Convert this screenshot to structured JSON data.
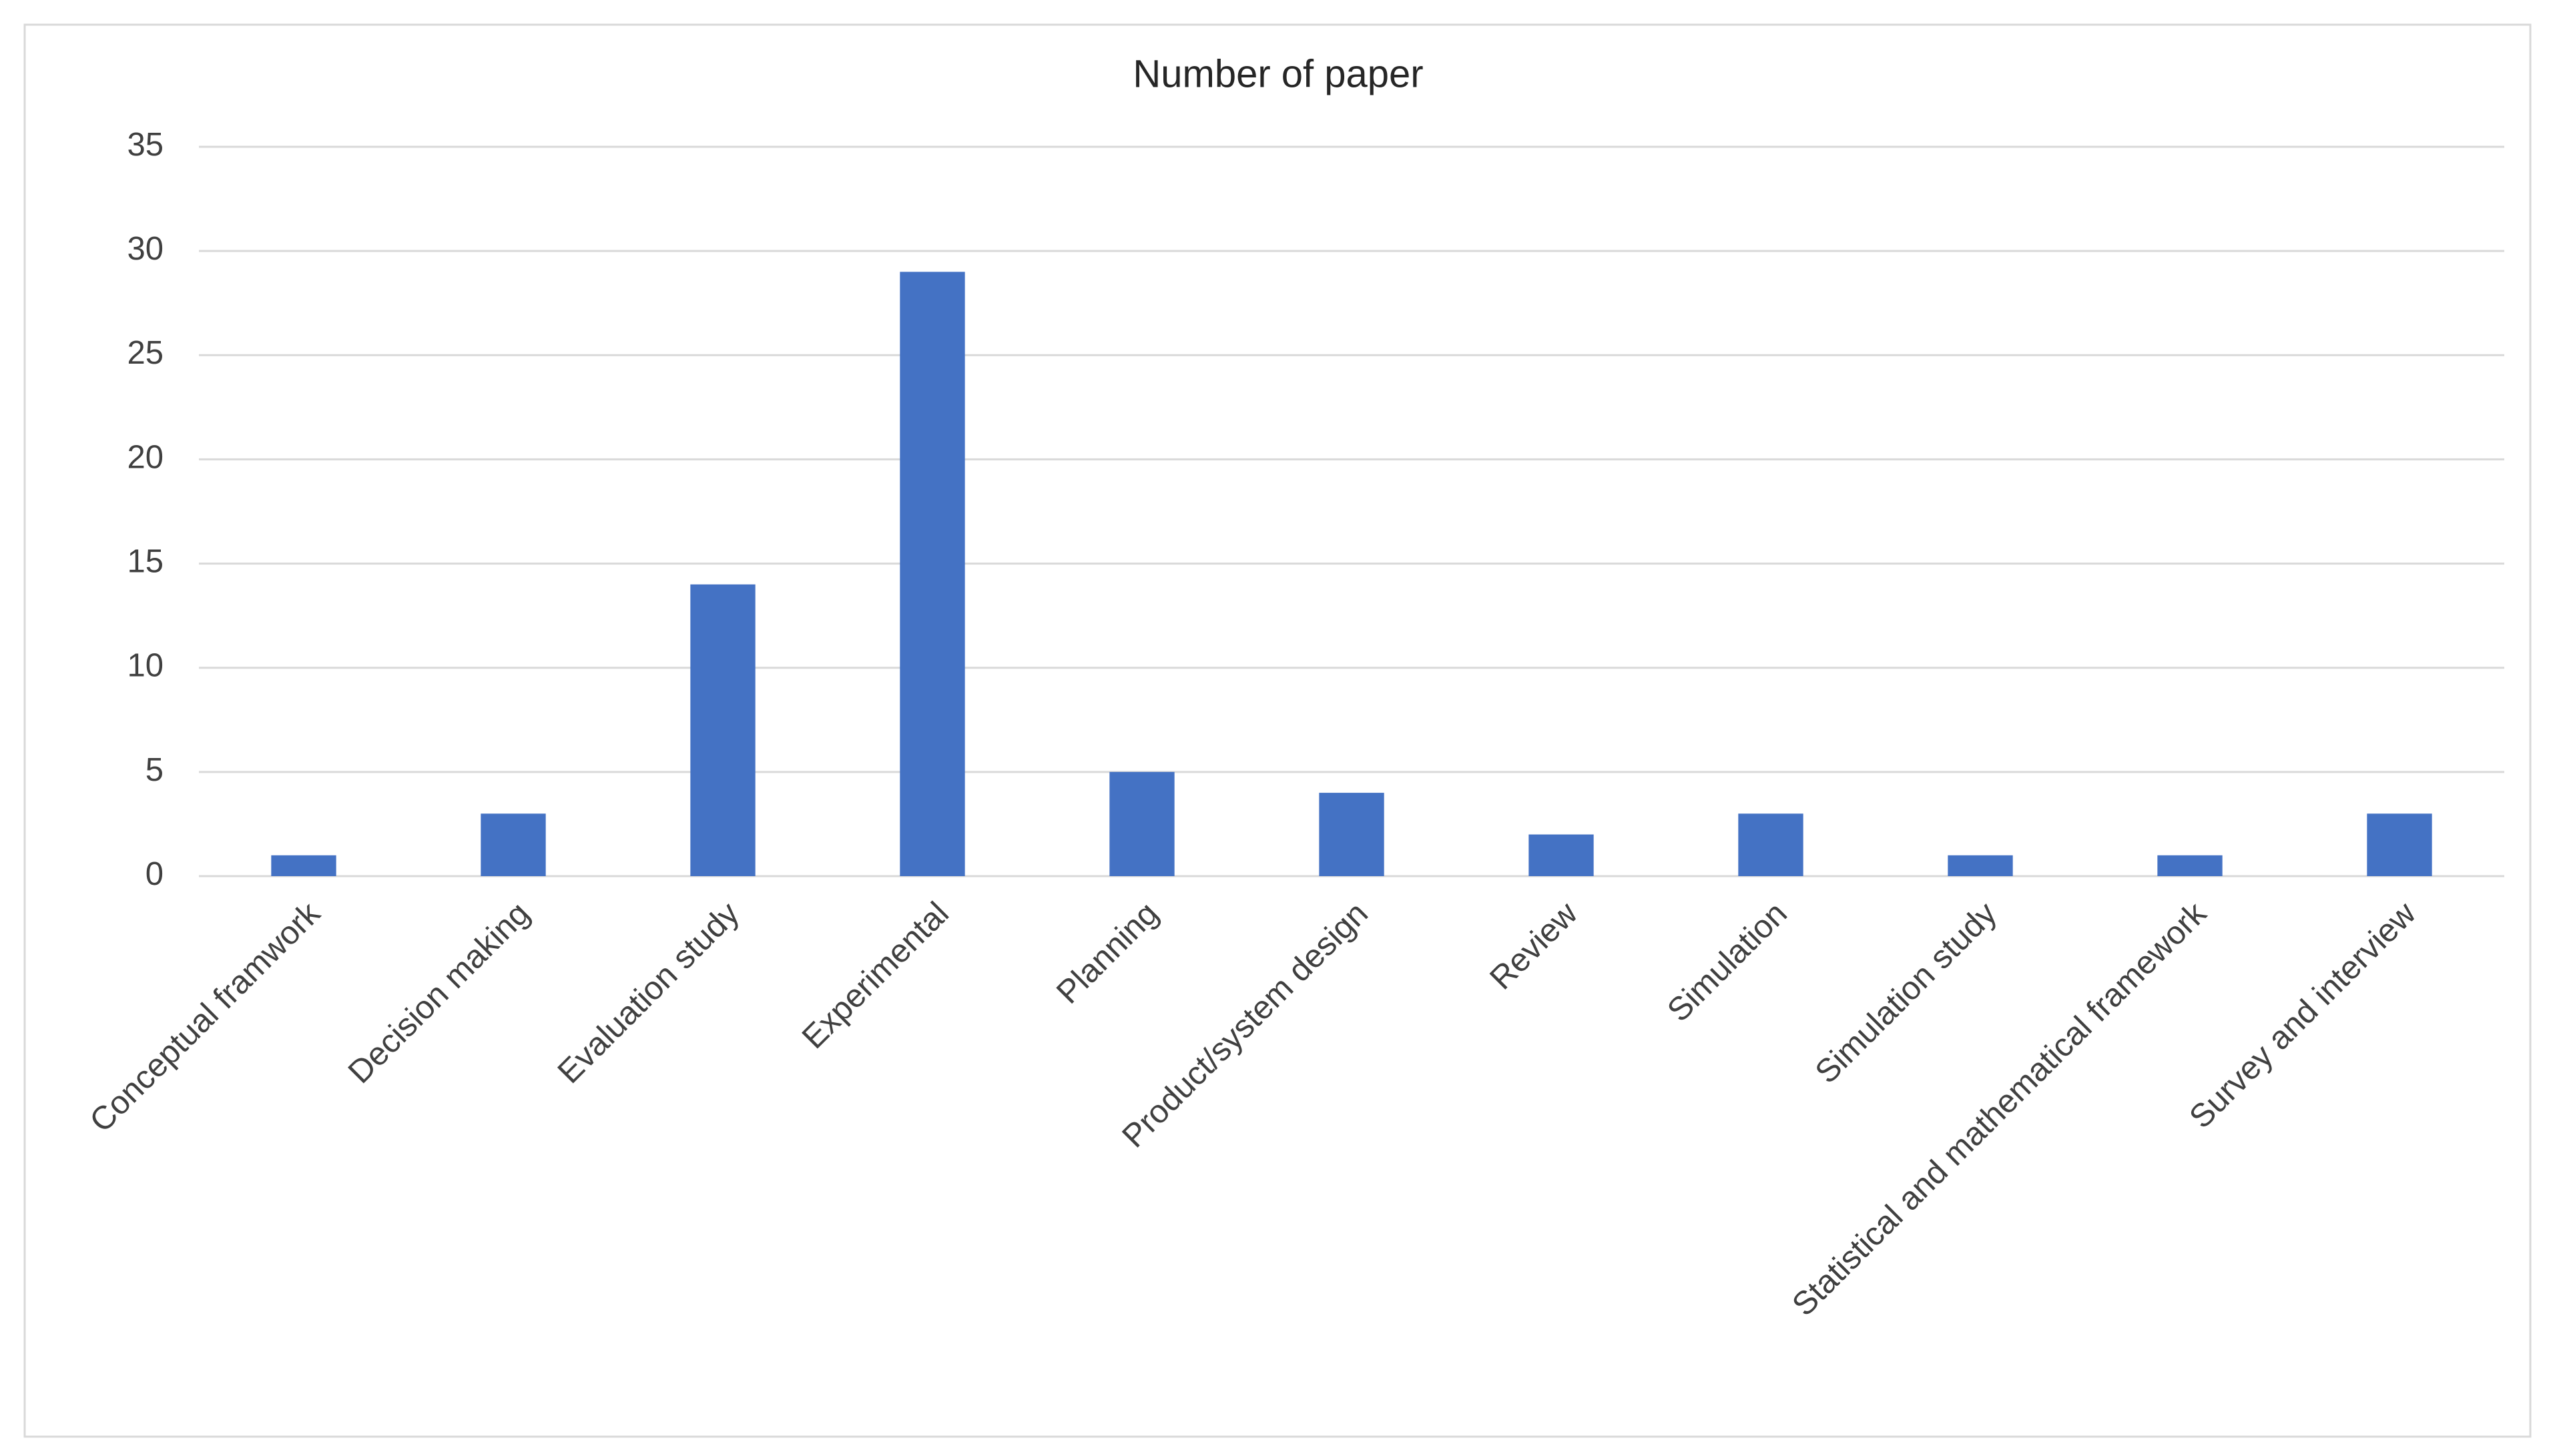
{
  "chart_data": {
    "type": "bar",
    "title": "Number of paper",
    "categories": [
      "Conceptual framwork",
      "Decision making",
      "Evaluation study",
      "Experimental",
      "Planning",
      "Product/system design",
      "Review",
      "Simulation",
      "Simulation study",
      "Statistical and mathematical framework",
      "Survey and interview"
    ],
    "values": [
      1,
      3,
      14,
      29,
      5,
      4,
      2,
      3,
      1,
      1,
      3
    ],
    "color": "#4472c4",
    "ylim": [
      0,
      35
    ],
    "yticks": [
      0,
      5,
      10,
      15,
      20,
      25,
      30,
      35
    ],
    "grid": true
  }
}
